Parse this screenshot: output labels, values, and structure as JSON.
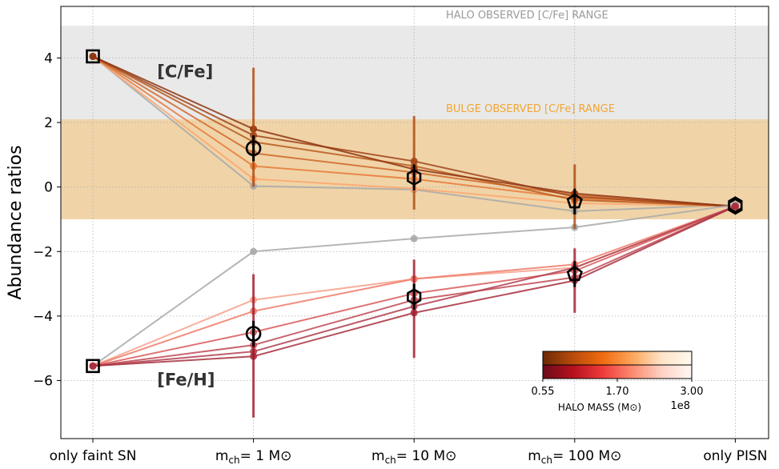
{
  "chart_data": {
    "type": "line",
    "ylabel": "Abundance ratios",
    "xlabel": "",
    "ylim": [
      -7.8,
      5.6
    ],
    "yticks": [
      4,
      2,
      0,
      -2,
      -4,
      -6
    ],
    "ytick_labels": [
      "4",
      "2",
      "0",
      "−2",
      "−4",
      "−6"
    ],
    "categories": [
      "only faint SN",
      "m_ch= 1 M_sun",
      "m_ch= 10 M_sun",
      "m_ch= 100 M_sun",
      "only PISN"
    ],
    "category_labels": [
      {
        "main": "only faint SN",
        "sub": "",
        "tail": ""
      },
      {
        "main": "m",
        "sub": "ch",
        "tail": "= 1 M⊙"
      },
      {
        "main": "m",
        "sub": "ch",
        "tail": "= 10 M⊙"
      },
      {
        "main": "m",
        "sub": "ch",
        "tail": "= 100 M⊙"
      },
      {
        "main": "only PISN",
        "sub": "",
        "tail": ""
      }
    ],
    "grid": true,
    "bands": [
      {
        "name": "halo",
        "label": "HALO OBSERVED [C/Fe] RANGE",
        "y_range": [
          -1.0,
          5.0
        ],
        "color": "#e9e9e9",
        "label_color": "#9a9a9a"
      },
      {
        "name": "bulge",
        "label": "BULGE OBSERVED [C/Fe] RANGE",
        "y_range": [
          -1.0,
          2.1
        ],
        "color": "#f0d3a4",
        "label_color": "#f2a531"
      }
    ],
    "annotations": [
      {
        "text": "[C/Fe]",
        "x": 0.4,
        "y": 3.6
      },
      {
        "text": "[Fe/H]",
        "x": 0.4,
        "y": -5.95
      }
    ],
    "series_CFe": [
      {
        "name": "Cmin",
        "color": "#a9a9a9",
        "values": [
          4.05,
          0.03,
          -0.08,
          -0.75,
          -0.55
        ]
      },
      {
        "name": "C1",
        "color": "#fba66f",
        "values": [
          4.05,
          0.25,
          -0.05,
          -0.5,
          -0.6
        ]
      },
      {
        "name": "C2",
        "color": "#e97a3a",
        "values": [
          4.05,
          0.65,
          0.25,
          -0.35,
          -0.6
        ]
      },
      {
        "name": "C3",
        "color": "#d0682c",
        "values": [
          4.05,
          1.05,
          0.45,
          -0.25,
          -0.6
        ]
      },
      {
        "name": "C4",
        "color": "#b85a1e",
        "values": [
          4.05,
          1.4,
          0.65,
          -0.4,
          -0.6
        ]
      },
      {
        "name": "C5",
        "color": "#a0441a",
        "values": [
          4.05,
          1.6,
          0.8,
          -0.3,
          -0.6
        ]
      },
      {
        "name": "C6",
        "color": "#8f3512",
        "values": [
          4.05,
          1.8,
          0.55,
          -0.2,
          -0.6
        ]
      }
    ],
    "series_FeH": [
      {
        "name": "Fmin",
        "color": "#a9a9a9",
        "values": [
          -5.55,
          -2.0,
          -1.6,
          -1.25,
          -0.55
        ]
      },
      {
        "name": "F1",
        "color": "#f7a08a",
        "values": [
          -5.55,
          -3.5,
          -2.85,
          -2.5,
          -0.6
        ]
      },
      {
        "name": "F2",
        "color": "#ee7a6a",
        "values": [
          -5.55,
          -3.85,
          -2.85,
          -2.4,
          -0.6
        ]
      },
      {
        "name": "F3",
        "color": "#d85a5a",
        "values": [
          -5.55,
          -4.5,
          -3.3,
          -2.6,
          -0.6
        ]
      },
      {
        "name": "F4",
        "color": "#c04a55",
        "values": [
          -5.55,
          -4.9,
          -3.5,
          -2.8,
          -0.6
        ]
      },
      {
        "name": "F5",
        "color": "#b0404f",
        "values": [
          -5.55,
          -5.1,
          -3.7,
          -2.5,
          -0.6
        ]
      },
      {
        "name": "F6",
        "color": "#a8303f",
        "values": [
          -5.55,
          -5.25,
          -3.9,
          -2.9,
          -0.6
        ]
      }
    ],
    "mean_CFe": [
      4.05,
      1.2,
      0.3,
      -0.45,
      -0.55
    ],
    "err_CFe": [
      [
        0,
        0
      ],
      [
        1.2,
        2.5
      ],
      [
        1.0,
        1.9
      ],
      [
        0.85,
        1.15
      ],
      [
        0,
        0
      ]
    ],
    "mean_FeH": [
      -5.55,
      -4.55,
      -3.4,
      -2.7,
      -0.6
    ],
    "err_FeH": [
      [
        0,
        0
      ],
      [
        2.6,
        1.85
      ],
      [
        1.9,
        1.15
      ],
      [
        1.2,
        0.8
      ],
      [
        0,
        0
      ]
    ],
    "markers": [
      "square",
      "circle",
      "hexagon",
      "pentagon",
      "hexagon"
    ],
    "colorbar": {
      "label": "HALO MASS (M⊙)",
      "scale_label": "1e8",
      "ticks": [
        "0.55",
        "1.70",
        "3.00"
      ],
      "top_colors": [
        "#6b2a06",
        "#b84a0c",
        "#f06a10",
        "#fda55a",
        "#fde4c8",
        "#fff8ef"
      ],
      "bottom_colors": [
        "#6a0d1c",
        "#b5101e",
        "#ee3a3a",
        "#fb8a6e",
        "#fdd2c4",
        "#fff7f4"
      ]
    }
  }
}
